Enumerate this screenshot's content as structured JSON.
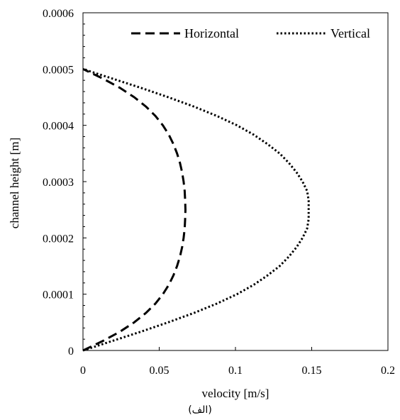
{
  "chart_data": {
    "type": "line",
    "xlabel": "velocity [m/s]",
    "ylabel": "channel height [m]",
    "xlim": [
      0,
      0.2
    ],
    "ylim": [
      0,
      0.0006
    ],
    "xticks": [
      0,
      0.05,
      0.1,
      0.15,
      0.2
    ],
    "xtick_labels": [
      "0",
      "0.05",
      "0.1",
      "0.15",
      "0.2"
    ],
    "yticks": [
      0,
      0.0001,
      0.0002,
      0.0003,
      0.0004,
      0.0005,
      0.0006
    ],
    "ytick_labels": [
      "0",
      "0.0001",
      "0.0002",
      "0.0003",
      "0.0004",
      "0.0005",
      "0.0006"
    ],
    "grid": false,
    "legend_position": "top",
    "series": [
      {
        "name": "Horizontal",
        "style": "dashed",
        "color": "#000000",
        "x": [
          0,
          0.0129,
          0.0242,
          0.0336,
          0.0413,
          0.0475,
          0.0524,
          0.0563,
          0.0593,
          0.0617,
          0.0636,
          0.065,
          0.066,
          0.0667,
          0.067,
          0.0672,
          0.067,
          0.0667,
          0.066,
          0.065,
          0.0636,
          0.0617,
          0.0593,
          0.0563,
          0.0524,
          0.0475,
          0.0413,
          0.0336,
          0.0242,
          0.0129,
          0
        ],
        "y": [
          0,
          1.67e-05,
          3.33e-05,
          5e-05,
          6.67e-05,
          8.33e-05,
          0.0001,
          0.0001167,
          0.0001333,
          0.00015,
          0.0001667,
          0.0001833,
          0.0002,
          0.0002167,
          0.0002333,
          0.00025,
          0.0002667,
          0.0002833,
          0.0003,
          0.0003167,
          0.0003333,
          0.00035,
          0.0003667,
          0.0003833,
          0.0004,
          0.0004167,
          0.0004333,
          0.00045,
          0.0004667,
          0.0004833,
          0.0005
        ]
      },
      {
        "name": "Vertical",
        "style": "dotted",
        "color": "#000000",
        "x": [
          0,
          0.019,
          0.0379,
          0.0559,
          0.0728,
          0.0878,
          0.101,
          0.112,
          0.121,
          0.129,
          0.135,
          0.14,
          0.144,
          0.147,
          0.148,
          0.148,
          0.147,
          0.144,
          0.14,
          0.135,
          0.129,
          0.121,
          0.112,
          0.101,
          0.0878,
          0.0728,
          0.0559,
          0.0379,
          0.019,
          0
        ],
        "y": [
          0,
          1.67e-05,
          3.33e-05,
          5e-05,
          6.67e-05,
          8.33e-05,
          0.0001,
          0.0001167,
          0.0001333,
          0.00015,
          0.0001667,
          0.0001833,
          0.0002,
          0.0002167,
          0.0002333,
          0.0002667,
          0.0002833,
          0.0003,
          0.0003167,
          0.0003333,
          0.00035,
          0.0003667,
          0.0003833,
          0.0004,
          0.0004167,
          0.0004333,
          0.00045,
          0.0004667,
          0.0004833,
          0.0005
        ]
      }
    ]
  },
  "caption": "(الف)"
}
